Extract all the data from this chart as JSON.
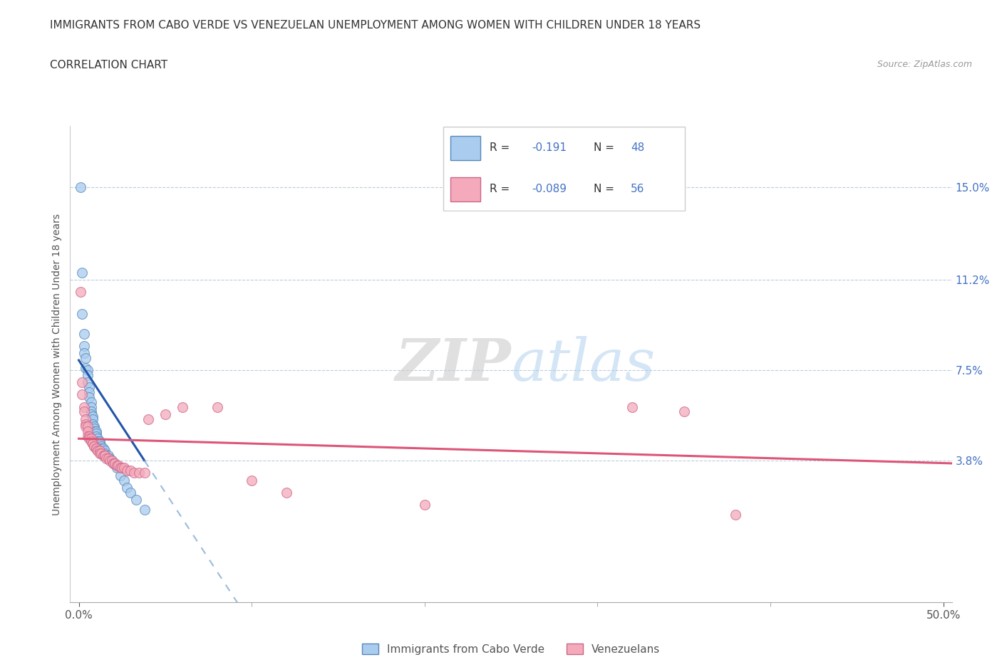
{
  "title_line1": "IMMIGRANTS FROM CABO VERDE VS VENEZUELAN UNEMPLOYMENT AMONG WOMEN WITH CHILDREN UNDER 18 YEARS",
  "title_line2": "CORRELATION CHART",
  "source": "Source: ZipAtlas.com",
  "ylabel": "Unemployment Among Women with Children Under 18 years",
  "x_tick_positions": [
    0.0,
    0.5
  ],
  "x_tick_labels": [
    "0.0%",
    "50.0%"
  ],
  "y_tick_labels_right": [
    "3.8%",
    "7.5%",
    "11.2%",
    "15.0%"
  ],
  "y_ticks_right": [
    0.038,
    0.075,
    0.112,
    0.15
  ],
  "xlim": [
    -0.005,
    0.505
  ],
  "ylim": [
    -0.02,
    0.175
  ],
  "legend_label1": "Immigrants from Cabo Verde",
  "legend_label2": "Venezuelans",
  "R1": "-0.191",
  "N1": "48",
  "R2": "-0.089",
  "N2": "56",
  "color_blue": "#aaccee",
  "color_pink": "#f4aabb",
  "color_blue_edge": "#5588bb",
  "color_pink_edge": "#cc6688",
  "color_blue_line": "#2255aa",
  "color_pink_line": "#dd5577",
  "color_blue_dash": "#99bbdd",
  "grid_color": "#bbccdd",
  "watermark_zip": "ZIP",
  "watermark_atlas": "atlas",
  "cabo_verde_x": [
    0.001,
    0.002,
    0.002,
    0.003,
    0.003,
    0.003,
    0.004,
    0.004,
    0.005,
    0.005,
    0.005,
    0.006,
    0.006,
    0.006,
    0.007,
    0.007,
    0.007,
    0.007,
    0.008,
    0.008,
    0.008,
    0.009,
    0.009,
    0.009,
    0.01,
    0.01,
    0.01,
    0.011,
    0.011,
    0.012,
    0.012,
    0.013,
    0.013,
    0.014,
    0.015,
    0.015,
    0.016,
    0.017,
    0.018,
    0.019,
    0.021,
    0.022,
    0.024,
    0.026,
    0.028,
    0.03,
    0.033,
    0.038
  ],
  "cabo_verde_y": [
    0.15,
    0.115,
    0.098,
    0.09,
    0.085,
    0.082,
    0.08,
    0.076,
    0.075,
    0.073,
    0.07,
    0.068,
    0.066,
    0.064,
    0.062,
    0.06,
    0.058,
    0.057,
    0.056,
    0.055,
    0.053,
    0.052,
    0.051,
    0.05,
    0.05,
    0.049,
    0.048,
    0.047,
    0.046,
    0.046,
    0.045,
    0.044,
    0.043,
    0.043,
    0.042,
    0.041,
    0.04,
    0.04,
    0.039,
    0.038,
    0.037,
    0.035,
    0.032,
    0.03,
    0.027,
    0.025,
    0.022,
    0.018
  ],
  "venezuelans_x": [
    0.001,
    0.002,
    0.002,
    0.003,
    0.003,
    0.004,
    0.004,
    0.004,
    0.005,
    0.005,
    0.005,
    0.006,
    0.006,
    0.007,
    0.007,
    0.008,
    0.008,
    0.009,
    0.009,
    0.01,
    0.01,
    0.011,
    0.011,
    0.012,
    0.012,
    0.013,
    0.014,
    0.015,
    0.015,
    0.016,
    0.017,
    0.018,
    0.019,
    0.02,
    0.02,
    0.021,
    0.022,
    0.023,
    0.024,
    0.025,
    0.026,
    0.028,
    0.03,
    0.032,
    0.035,
    0.038,
    0.04,
    0.05,
    0.06,
    0.08,
    0.1,
    0.12,
    0.2,
    0.32,
    0.35,
    0.38
  ],
  "venezuelans_y": [
    0.107,
    0.07,
    0.065,
    0.06,
    0.058,
    0.055,
    0.053,
    0.052,
    0.052,
    0.05,
    0.048,
    0.048,
    0.047,
    0.047,
    0.046,
    0.045,
    0.045,
    0.044,
    0.044,
    0.043,
    0.043,
    0.042,
    0.042,
    0.042,
    0.041,
    0.041,
    0.04,
    0.04,
    0.04,
    0.039,
    0.039,
    0.038,
    0.038,
    0.037,
    0.037,
    0.037,
    0.036,
    0.036,
    0.035,
    0.035,
    0.035,
    0.034,
    0.034,
    0.033,
    0.033,
    0.033,
    0.055,
    0.057,
    0.06,
    0.06,
    0.03,
    0.025,
    0.02,
    0.06,
    0.058,
    0.016
  ]
}
